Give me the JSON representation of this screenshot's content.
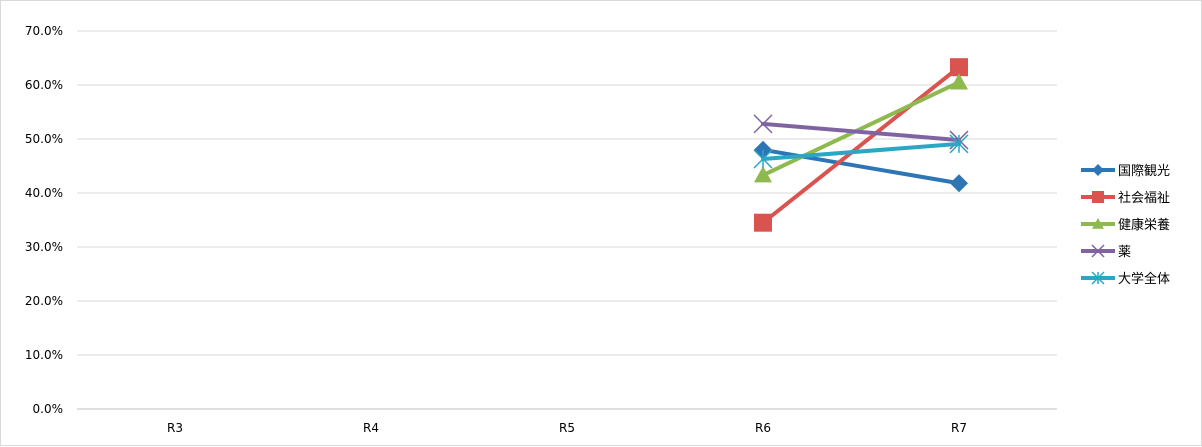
{
  "chart_data": {
    "type": "line",
    "categories": [
      "R3",
      "R4",
      "R5",
      "R6",
      "R7"
    ],
    "ylim": [
      0,
      70
    ],
    "yticks": [
      0,
      10,
      20,
      30,
      40,
      50,
      60,
      70
    ],
    "ytick_labels": [
      "0.0%",
      "10.0%",
      "20.0%",
      "30.0%",
      "40.0%",
      "50.0%",
      "60.0%",
      "70.0%"
    ],
    "grid": true,
    "legend_position": "right",
    "series": [
      {
        "name": "国際観光",
        "color": "#2E75B6",
        "marker": "diamond",
        "values": [
          null,
          null,
          null,
          48.0,
          41.8
        ]
      },
      {
        "name": "社会福祉",
        "color": "#D9534F",
        "marker": "square",
        "values": [
          null,
          null,
          null,
          34.5,
          63.3
        ]
      },
      {
        "name": "健康栄養",
        "color": "#8DB94E",
        "marker": "triangle",
        "values": [
          null,
          null,
          null,
          43.3,
          60.5
        ]
      },
      {
        "name": "薬",
        "color": "#8064A2",
        "marker": "x",
        "values": [
          null,
          null,
          null,
          52.8,
          49.8
        ]
      },
      {
        "name": "大学全体",
        "color": "#2BA6C4",
        "marker": "asterisk",
        "values": [
          null,
          null,
          null,
          46.3,
          49.1
        ]
      }
    ]
  }
}
